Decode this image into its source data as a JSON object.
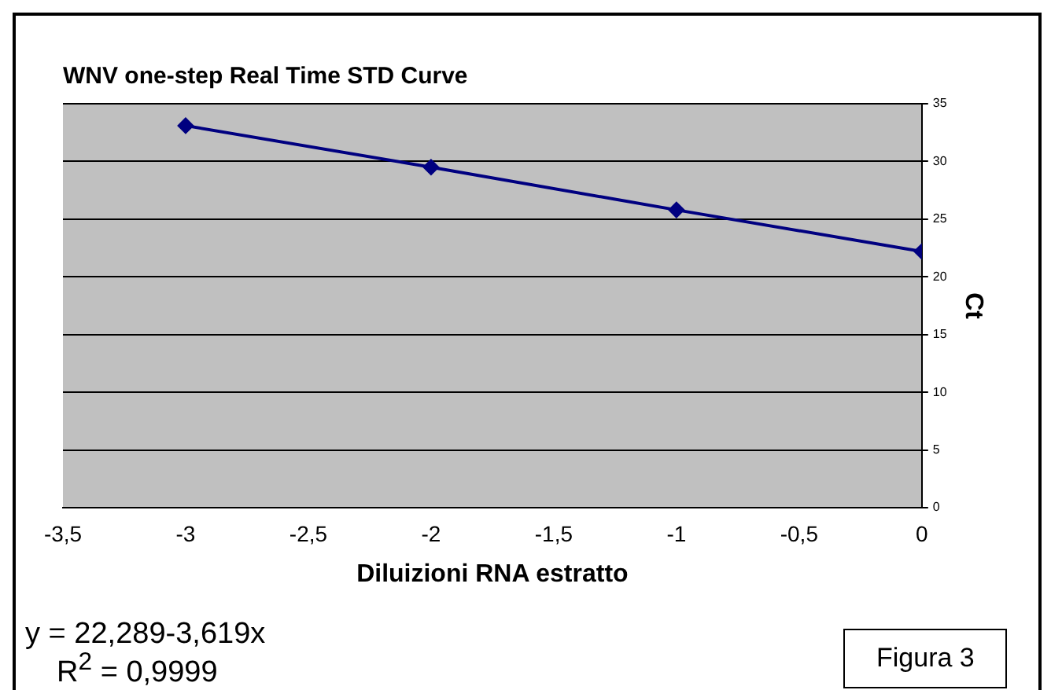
{
  "chart_data": {
    "type": "line",
    "title": "WNV one-step Real Time STD Curve",
    "xlabel": "Diluizioni RNA estratto",
    "ylabel": "Ct",
    "x": [
      -3,
      -2,
      -1,
      0
    ],
    "series": [
      {
        "color": "#000080",
        "values": [
          33.1,
          29.5,
          25.8,
          22.2
        ]
      }
    ],
    "xlim": [
      -3.5,
      0
    ],
    "xticks": [
      {
        "value": -3.5,
        "label": "-3,5"
      },
      {
        "value": -3,
        "label": "-3"
      },
      {
        "value": -2.5,
        "label": "-2,5"
      },
      {
        "value": -2,
        "label": "-2"
      },
      {
        "value": -1.5,
        "label": "-1,5"
      },
      {
        "value": -1,
        "label": "-1"
      },
      {
        "value": -0.5,
        "label": "-0,5"
      },
      0
    ],
    "ylim": [
      0,
      35
    ],
    "yticks": [
      0,
      5,
      10,
      15,
      20,
      25,
      30,
      35
    ],
    "grid": "y",
    "legend": false,
    "marker": "diamond",
    "line_style": "solid",
    "annotations": [
      "y = 22,289-3,619x",
      "R$^{2}$ = 0,9999",
      "Figura 3"
    ]
  }
}
